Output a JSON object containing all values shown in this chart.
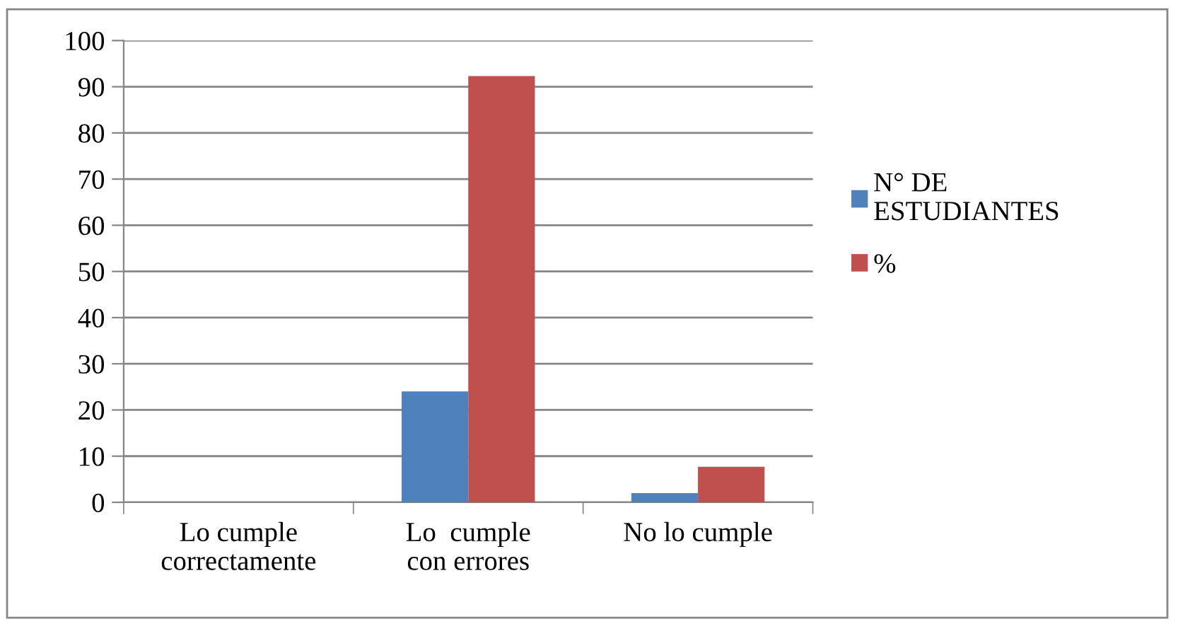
{
  "chart_data": {
    "type": "bar",
    "categories": [
      "Lo cumple\ncorrectamente",
      "Lo  cumple\ncon errores",
      "No lo cumple"
    ],
    "series": [
      {
        "name": "N° DE\nESTUDIANTES",
        "color": "#4f81bd",
        "values": [
          0,
          24,
          2
        ]
      },
      {
        "name": "%",
        "color": "#c0504d",
        "values": [
          0,
          92.3,
          7.7
        ]
      }
    ],
    "ylim": [
      0,
      100
    ],
    "yticks": [
      0,
      10,
      20,
      30,
      40,
      50,
      60,
      70,
      80,
      90,
      100
    ],
    "grid": "y",
    "legend": "right"
  }
}
